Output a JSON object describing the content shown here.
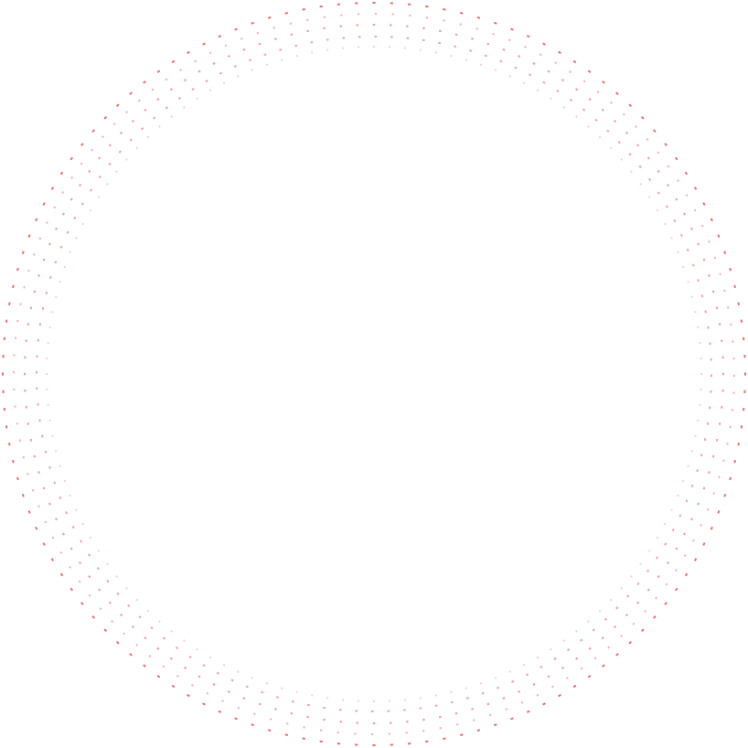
{
  "graphic": {
    "type": "dotted-ring-decoration",
    "ring_count": 5,
    "dot_color": "#e0575a"
  }
}
